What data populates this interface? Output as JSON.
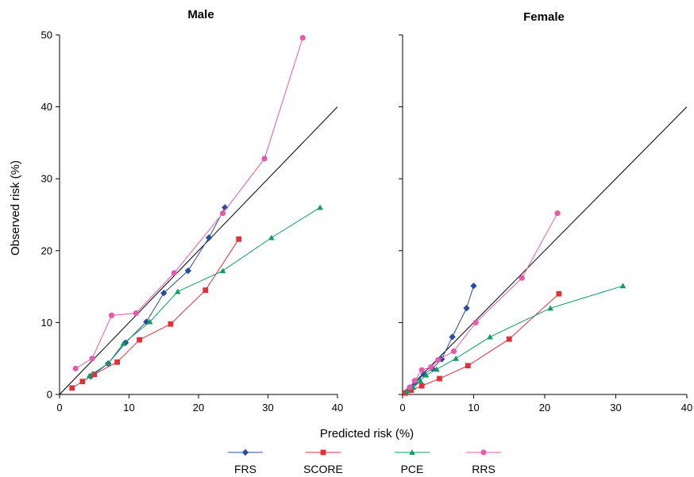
{
  "chart_data": {
    "type": "line",
    "xlabel": "Predicted risk (%)",
    "ylabel": "Observed risk (%)",
    "legend_position": "bottom",
    "colors": {
      "FRS": "#2b4c9b",
      "SCORE": "#e0313b",
      "PCE": "#0e9c63",
      "RRS": "#e55aaa",
      "identity": "#000000"
    },
    "panels": [
      {
        "title": "Male",
        "xlim": [
          0,
          40
        ],
        "ylim": [
          0,
          50
        ],
        "xticks": [
          0,
          10,
          20,
          30,
          40
        ],
        "yticks": [
          0,
          10,
          20,
          30,
          40,
          50
        ],
        "identity_line": [
          [
            0,
            0
          ],
          [
            40,
            40
          ]
        ],
        "series": [
          {
            "name": "FRS",
            "marker": "diamond",
            "points": [
              [
                4.5,
                2.5
              ],
              [
                7.0,
                4.3
              ],
              [
                9.5,
                7.2
              ],
              [
                12.5,
                10.1
              ],
              [
                15.0,
                14.1
              ],
              [
                18.5,
                17.2
              ],
              [
                21.5,
                21.8
              ],
              [
                23.8,
                26.0
              ]
            ]
          },
          {
            "name": "SCORE",
            "marker": "square",
            "points": [
              [
                1.8,
                0.9
              ],
              [
                3.3,
                1.8
              ],
              [
                5.0,
                2.8
              ],
              [
                8.3,
                4.5
              ],
              [
                11.5,
                7.6
              ],
              [
                16.0,
                9.8
              ],
              [
                21.0,
                14.5
              ],
              [
                25.8,
                21.6
              ]
            ]
          },
          {
            "name": "PCE",
            "marker": "triangle",
            "points": [
              [
                4.3,
                2.6
              ],
              [
                7.0,
                4.3
              ],
              [
                9.2,
                7.1
              ],
              [
                13.0,
                10.1
              ],
              [
                17.0,
                14.3
              ],
              [
                23.5,
                17.2
              ],
              [
                30.5,
                21.8
              ],
              [
                37.5,
                26.0
              ]
            ]
          },
          {
            "name": "RRS",
            "marker": "circle",
            "points": [
              [
                2.3,
                3.6
              ],
              [
                4.7,
                5.0
              ],
              [
                7.5,
                11.0
              ],
              [
                11.0,
                11.3
              ],
              [
                16.5,
                16.9
              ],
              [
                23.5,
                25.2
              ],
              [
                29.5,
                32.8
              ],
              [
                35.0,
                49.6
              ]
            ]
          }
        ]
      },
      {
        "title": "Female",
        "xlim": [
          0,
          40
        ],
        "ylim": [
          0,
          50
        ],
        "xticks": [
          0,
          10,
          20,
          30,
          40
        ],
        "yticks": [
          0,
          10,
          20,
          30,
          40,
          50
        ],
        "identity_line": [
          [
            0,
            0
          ],
          [
            40,
            40
          ]
        ],
        "series": [
          {
            "name": "FRS",
            "marker": "diamond",
            "points": [
              [
                0.5,
                0.3
              ],
              [
                1.0,
                0.8
              ],
              [
                1.8,
                1.6
              ],
              [
                3.0,
                2.8
              ],
              [
                4.2,
                3.6
              ],
              [
                5.5,
                4.9
              ],
              [
                7.0,
                8.0
              ],
              [
                9.0,
                12.0
              ],
              [
                10.0,
                15.1
              ]
            ]
          },
          {
            "name": "SCORE",
            "marker": "square",
            "points": [
              [
                0.4,
                0.2
              ],
              [
                1.2,
                0.6
              ],
              [
                2.7,
                1.2
              ],
              [
                5.2,
                2.2
              ],
              [
                9.2,
                4.0
              ],
              [
                15.0,
                7.7
              ],
              [
                22.0,
                14.0
              ]
            ]
          },
          {
            "name": "PCE",
            "marker": "triangle",
            "points": [
              [
                0.7,
                0.5
              ],
              [
                1.5,
                1.0
              ],
              [
                2.5,
                1.9
              ],
              [
                3.3,
                2.7
              ],
              [
                4.8,
                3.5
              ],
              [
                7.5,
                5.0
              ],
              [
                12.3,
                8.0
              ],
              [
                20.8,
                12.0
              ],
              [
                31.0,
                15.1
              ]
            ]
          },
          {
            "name": "RRS",
            "marker": "circle",
            "points": [
              [
                1.0,
                1.0
              ],
              [
                1.7,
                1.9
              ],
              [
                2.7,
                3.4
              ],
              [
                4.0,
                3.8
              ],
              [
                5.0,
                4.8
              ],
              [
                7.2,
                6.0
              ],
              [
                10.3,
                10.0
              ],
              [
                16.8,
                16.2
              ],
              [
                21.8,
                25.2
              ]
            ]
          }
        ]
      }
    ]
  }
}
